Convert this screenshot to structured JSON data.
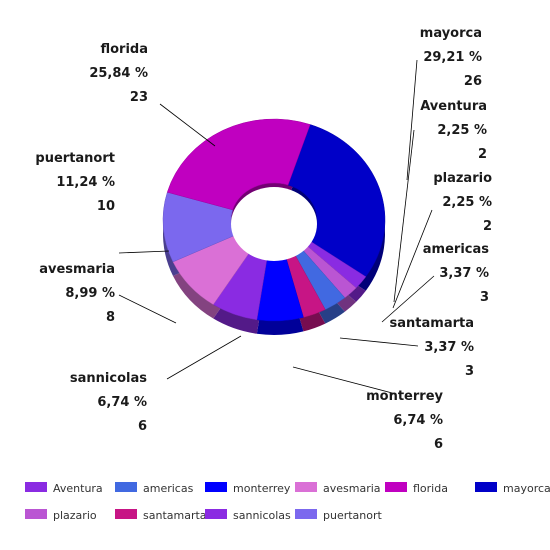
{
  "chart_data": {
    "type": "pie",
    "style": "donut-3d",
    "title": "",
    "slices": [
      {
        "name": "mayorca",
        "percent_label": "29,21 %",
        "value": 26,
        "color": "#0000C8"
      },
      {
        "name": "Aventura",
        "percent_label": "2,25 %",
        "value": 2,
        "color": "#8A2BE2"
      },
      {
        "name": "plazario",
        "percent_label": "2,25 %",
        "value": 2,
        "color": "#BA55D3"
      },
      {
        "name": "americas",
        "percent_label": "3,37 %",
        "value": 3,
        "color": "#4169E1"
      },
      {
        "name": "santamarta",
        "percent_label": "3,37 %",
        "value": 3,
        "color": "#C71585"
      },
      {
        "name": "monterrey",
        "percent_label": "6,74 %",
        "value": 6,
        "color": "#0000FF"
      },
      {
        "name": "sannicolas",
        "percent_label": "6,74 %",
        "value": 6,
        "color": "#8A2BE2"
      },
      {
        "name": "avesmaria",
        "percent_label": "8,99 %",
        "value": 8,
        "color": "#DA70D6"
      },
      {
        "name": "puertanort",
        "percent_label": "11,24 %",
        "value": 10,
        "color": "#7B68EE"
      },
      {
        "name": "florida",
        "percent_label": "25,84 %",
        "value": 23,
        "color": "#C000C0"
      }
    ],
    "legend": {
      "placement": "bottom",
      "items": [
        {
          "name": "Aventura",
          "color": "#8A2BE2"
        },
        {
          "name": "americas",
          "color": "#4169E1"
        },
        {
          "name": "monterrey",
          "color": "#0000FF"
        },
        {
          "name": "avesmaria",
          "color": "#DA70D6"
        },
        {
          "name": "florida",
          "color": "#C000C0"
        },
        {
          "name": "mayorca",
          "color": "#0000C8"
        },
        {
          "name": "plazario",
          "color": "#BA55D3"
        },
        {
          "name": "santamarta",
          "color": "#C71585"
        },
        {
          "name": "sannicolas",
          "color": "#8A2BE2"
        },
        {
          "name": "puertanort",
          "color": "#7B68EE"
        }
      ]
    }
  }
}
